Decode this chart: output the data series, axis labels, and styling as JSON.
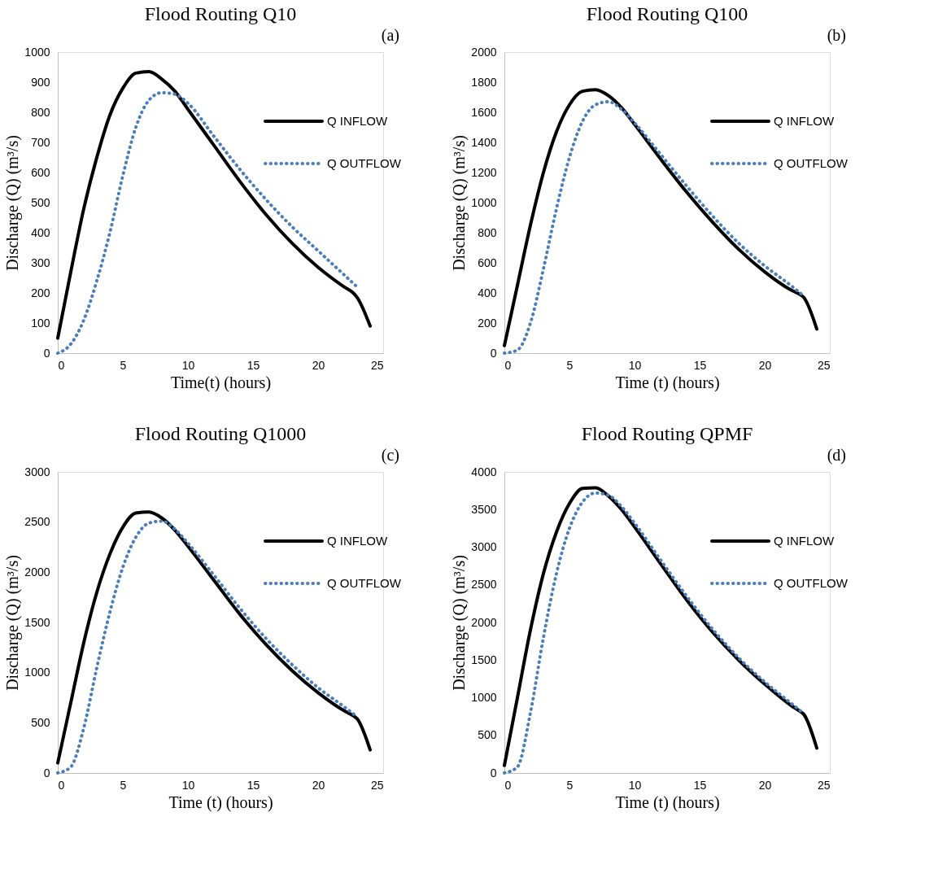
{
  "chart_data": [
    {
      "type": "line",
      "title": "Flood Routing Q10",
      "annotations": [
        "(a)"
      ],
      "xlabel": "Time(t) (hours)",
      "ylabel": "Discharge  (Q)  (m³/s)",
      "xlim": [
        0,
        25
      ],
      "xticks": [
        0,
        5,
        10,
        15,
        20,
        25
      ],
      "ylim": [
        0,
        1000
      ],
      "yticks": [
        0,
        100,
        200,
        300,
        400,
        500,
        600,
        700,
        800,
        900,
        1000
      ],
      "grid": false,
      "legend": "top right",
      "marker": "none",
      "series": [
        {
          "name": "Q INFLOW",
          "color": "#000000",
          "line_style": "solid",
          "x": [
            0,
            1,
            2,
            3,
            4,
            5,
            6,
            7,
            8,
            9,
            10,
            12,
            14,
            16,
            18,
            20,
            22,
            22.7,
            23,
            24
          ],
          "values": [
            50,
            270,
            480,
            650,
            790,
            880,
            930,
            935,
            910,
            870,
            810,
            690,
            570,
            460,
            365,
            285,
            220,
            200,
            185,
            90
          ]
        },
        {
          "name": "Q OUTFLOW",
          "color": "#4a7ebb",
          "line_style": "dotted",
          "x": [
            0,
            1,
            2,
            3,
            4,
            5,
            6,
            7,
            8,
            9,
            10,
            12,
            14,
            16,
            18,
            20,
            22,
            23
          ],
          "values": [
            0,
            30,
            110,
            240,
            400,
            590,
            750,
            840,
            865,
            860,
            830,
            720,
            610,
            510,
            420,
            340,
            260,
            220
          ]
        }
      ]
    },
    {
      "type": "line",
      "title": "Flood Routing Q100",
      "annotations": [
        "(b)"
      ],
      "xlabel": "Time (t) (hours)",
      "ylabel": "Discharge  (Q)  (m³/s)",
      "xlim": [
        0,
        25
      ],
      "xticks": [
        0,
        5,
        10,
        15,
        20,
        25
      ],
      "ylim": [
        0,
        2000
      ],
      "yticks": [
        0,
        200,
        400,
        600,
        800,
        1000,
        1200,
        1400,
        1600,
        1800,
        2000
      ],
      "grid": false,
      "legend": "top right",
      "marker": "none",
      "series": [
        {
          "name": "Q INFLOW",
          "color": "#000000",
          "line_style": "solid",
          "x": [
            0,
            1,
            2,
            3,
            4,
            5,
            6,
            7,
            8,
            9,
            10,
            12,
            14,
            16,
            18,
            20,
            22,
            22.7,
            23,
            24
          ],
          "values": [
            50,
            450,
            850,
            1200,
            1470,
            1650,
            1740,
            1750,
            1710,
            1630,
            1520,
            1290,
            1070,
            870,
            690,
            540,
            420,
            390,
            370,
            160
          ]
        },
        {
          "name": "Q OUTFLOW",
          "color": "#4a7ebb",
          "line_style": "dotted",
          "x": [
            0,
            1,
            2,
            3,
            4,
            5,
            6,
            7,
            8,
            9,
            10,
            12,
            14,
            16,
            18,
            20,
            22,
            23
          ],
          "values": [
            0,
            20,
            200,
            560,
            960,
            1300,
            1540,
            1650,
            1670,
            1620,
            1530,
            1320,
            1110,
            910,
            730,
            580,
            450,
            380
          ]
        }
      ]
    },
    {
      "type": "line",
      "title": "Flood Routing Q1000",
      "annotations": [
        "(c)"
      ],
      "xlabel": "Time (t) (hours)",
      "ylabel": "Discharge (Q)  (m³/s)",
      "xlim": [
        0,
        25
      ],
      "xticks": [
        0,
        5,
        10,
        15,
        20,
        25
      ],
      "ylim": [
        0,
        3000
      ],
      "yticks": [
        0,
        500,
        1000,
        1500,
        2000,
        2500,
        3000
      ],
      "grid": false,
      "legend": "top right",
      "marker": "none",
      "series": [
        {
          "name": "Q INFLOW",
          "color": "#000000",
          "line_style": "solid",
          "x": [
            0,
            1,
            2,
            3,
            4,
            5,
            6,
            7,
            8,
            9,
            10,
            12,
            14,
            16,
            18,
            20,
            22,
            22.7,
            23,
            24
          ],
          "values": [
            100,
            700,
            1300,
            1800,
            2180,
            2450,
            2590,
            2600,
            2540,
            2420,
            2260,
            1920,
            1580,
            1280,
            1020,
            800,
            620,
            570,
            540,
            230
          ]
        },
        {
          "name": "Q OUTFLOW",
          "color": "#4a7ebb",
          "line_style": "dotted",
          "x": [
            0,
            1,
            2,
            3,
            4,
            5,
            6,
            7,
            8,
            9,
            10,
            12,
            14,
            16,
            18,
            20,
            22,
            23
          ],
          "values": [
            0,
            60,
            450,
            1050,
            1600,
            2050,
            2350,
            2490,
            2510,
            2430,
            2290,
            1970,
            1640,
            1340,
            1080,
            850,
            660,
            560
          ]
        }
      ]
    },
    {
      "type": "line",
      "title": "Flood Routing QPMF",
      "annotations": [
        "(d)"
      ],
      "xlabel": "Time (t) (hours)",
      "ylabel": "Discharge (Q)  (m³/s)",
      "xlim": [
        0,
        25
      ],
      "xticks": [
        0,
        5,
        10,
        15,
        20,
        25
      ],
      "ylim": [
        0,
        4000
      ],
      "yticks": [
        0,
        500,
        1000,
        1500,
        2000,
        2500,
        3000,
        3500,
        4000
      ],
      "grid": false,
      "legend": "top right",
      "marker": "none",
      "series": [
        {
          "name": "Q INFLOW",
          "color": "#000000",
          "line_style": "solid",
          "x": [
            0,
            1,
            2,
            3,
            4,
            5,
            6,
            7,
            8,
            9,
            10,
            12,
            14,
            16,
            18,
            20,
            22,
            22.7,
            23,
            24
          ],
          "values": [
            100,
            1000,
            1900,
            2650,
            3200,
            3580,
            3780,
            3790,
            3680,
            3500,
            3270,
            2780,
            2300,
            1870,
            1500,
            1180,
            900,
            820,
            780,
            330
          ]
        },
        {
          "name": "Q OUTFLOW",
          "color": "#4a7ebb",
          "line_style": "dotted",
          "x": [
            0,
            1,
            2,
            3,
            4,
            5,
            6,
            7,
            8,
            9,
            10,
            12,
            14,
            16,
            18,
            20,
            22,
            23
          ],
          "values": [
            0,
            80,
            800,
            1800,
            2650,
            3250,
            3600,
            3720,
            3690,
            3540,
            3320,
            2830,
            2350,
            1910,
            1530,
            1210,
            930,
            790
          ]
        }
      ]
    }
  ]
}
